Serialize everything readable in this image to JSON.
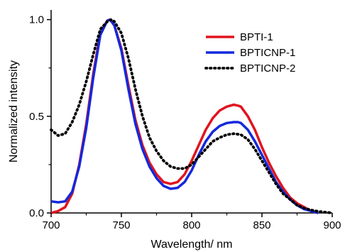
{
  "chart_data": {
    "type": "line",
    "xlabel": "Wavelength/ nm",
    "ylabel": "Normalized intensity",
    "xlim": [
      700,
      900
    ],
    "ylim": [
      0,
      1.05
    ],
    "x_ticks": [
      700,
      750,
      800,
      850,
      900
    ],
    "x_tick_labels": [
      "700",
      "750",
      "800",
      "850",
      "900"
    ],
    "y_ticks": [
      0,
      0.5,
      1
    ],
    "y_tick_labels": [
      "0.0",
      "0.5",
      "1.0"
    ],
    "grid": false,
    "legend_position": "top-right",
    "series": [
      {
        "name": "BPTI-1",
        "color": "#e0141e",
        "style": "solid",
        "x": [
          700,
          705,
          710,
          715,
          720,
          725,
          730,
          735,
          740,
          742,
          745,
          750,
          755,
          760,
          765,
          770,
          775,
          780,
          785,
          790,
          795,
          800,
          805,
          810,
          815,
          820,
          825,
          830,
          833,
          835,
          840,
          845,
          850,
          855,
          860,
          865,
          870,
          875,
          880,
          885,
          890
        ],
        "y": [
          0.0,
          0.01,
          0.03,
          0.1,
          0.25,
          0.46,
          0.72,
          0.93,
          0.995,
          1.0,
          0.97,
          0.85,
          0.66,
          0.48,
          0.35,
          0.26,
          0.2,
          0.16,
          0.15,
          0.16,
          0.2,
          0.27,
          0.35,
          0.43,
          0.49,
          0.53,
          0.55,
          0.56,
          0.555,
          0.55,
          0.5,
          0.43,
          0.34,
          0.26,
          0.19,
          0.13,
          0.08,
          0.05,
          0.03,
          0.01,
          0.0
        ]
      },
      {
        "name": "BPTICNP-1",
        "color": "#1428dc",
        "style": "solid",
        "x": [
          700,
          705,
          710,
          715,
          720,
          725,
          730,
          735,
          740,
          742,
          745,
          750,
          755,
          760,
          765,
          770,
          775,
          780,
          785,
          790,
          795,
          800,
          805,
          810,
          815,
          820,
          825,
          830,
          833,
          835,
          840,
          845,
          850,
          855,
          860,
          865,
          870,
          875,
          880,
          885,
          890
        ],
        "y": [
          0.06,
          0.055,
          0.06,
          0.11,
          0.24,
          0.44,
          0.7,
          0.92,
          0.995,
          1.0,
          0.97,
          0.84,
          0.64,
          0.46,
          0.33,
          0.24,
          0.18,
          0.14,
          0.125,
          0.13,
          0.16,
          0.22,
          0.3,
          0.37,
          0.42,
          0.45,
          0.465,
          0.47,
          0.47,
          0.465,
          0.43,
          0.37,
          0.3,
          0.23,
          0.16,
          0.11,
          0.07,
          0.04,
          0.02,
          0.01,
          0.0
        ]
      },
      {
        "name": "BPTICNP-2",
        "color": "#000000",
        "style": "dotted",
        "x": [
          700,
          705,
          710,
          715,
          720,
          725,
          730,
          735,
          740,
          743,
          745,
          750,
          755,
          760,
          765,
          770,
          775,
          780,
          785,
          790,
          795,
          800,
          805,
          810,
          815,
          820,
          825,
          830,
          835,
          840,
          845,
          850,
          855,
          860,
          865,
          870,
          875,
          880,
          885,
          890,
          895,
          900
        ],
        "y": [
          0.43,
          0.4,
          0.41,
          0.47,
          0.56,
          0.68,
          0.82,
          0.95,
          0.99,
          1.0,
          0.99,
          0.93,
          0.8,
          0.64,
          0.5,
          0.39,
          0.32,
          0.27,
          0.24,
          0.23,
          0.23,
          0.25,
          0.29,
          0.33,
          0.37,
          0.39,
          0.405,
          0.41,
          0.405,
          0.38,
          0.33,
          0.27,
          0.21,
          0.15,
          0.1,
          0.07,
          0.04,
          0.025,
          0.015,
          0.008,
          0.004,
          0.0
        ]
      }
    ]
  }
}
